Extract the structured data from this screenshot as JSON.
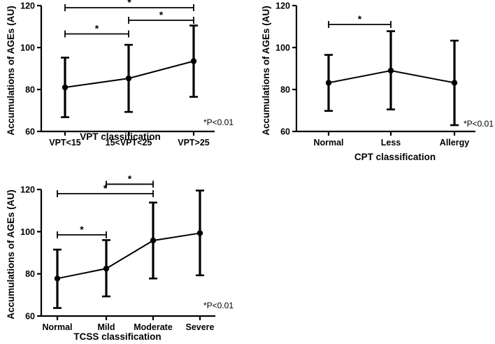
{
  "colors": {
    "ink": "#000000",
    "background": "#ffffff"
  },
  "chart_data": [
    {
      "type": "line",
      "id": "vpt",
      "xlabel": "VPT classification",
      "ylabel": "Accumulations of AGEs (AU)",
      "ylim": [
        60,
        120
      ],
      "yticks": [
        "60",
        "80",
        "100",
        "120"
      ],
      "categories": [
        "VPT<15",
        "15<VPT<25",
        "VPT>25"
      ],
      "values": [
        81,
        85.3,
        93.5
      ],
      "error_low": [
        66.8,
        69.3,
        76.5
      ],
      "error_high": [
        95.2,
        101.3,
        110.5
      ],
      "significance": [
        {
          "from": 0,
          "to": 2,
          "y": 119,
          "label": "*"
        },
        {
          "from": 0,
          "to": 1,
          "y": 106.5,
          "label": "*"
        },
        {
          "from": 1,
          "to": 2,
          "y": 113,
          "label": "*"
        }
      ],
      "note": "*P<0.01"
    },
    {
      "type": "line",
      "id": "cpt",
      "xlabel": "CPT classification",
      "ylabel": "Accumulations of AGEs (AU)",
      "ylim": [
        60,
        120
      ],
      "yticks": [
        "60",
        "80",
        "100",
        "120"
      ],
      "categories": [
        "Normal",
        "Less",
        "Allergy"
      ],
      "values": [
        83.2,
        89,
        83.2
      ],
      "error_low": [
        69.8,
        70.5,
        63
      ],
      "error_high": [
        96.5,
        107.8,
        103.3
      ],
      "significance": [
        {
          "from": 0,
          "to": 1,
          "y": 111,
          "label": "*"
        }
      ],
      "note": "*P<0.01"
    },
    {
      "type": "line",
      "id": "tcss",
      "xlabel": "TCSS classification",
      "ylabel": "Accumulations of AGEs (AU)",
      "ylim": [
        60,
        120
      ],
      "yticks": [
        "60",
        "80",
        "100",
        "120"
      ],
      "categories": [
        "Normal",
        "Mild",
        "Moderate",
        "Severe"
      ],
      "values": [
        77.8,
        82.5,
        95.8,
        99.3
      ],
      "error_low": [
        63.8,
        69.3,
        77.8,
        79.3
      ],
      "error_high": [
        91.5,
        96,
        113.8,
        119.5
      ],
      "significance": [
        {
          "from": 0,
          "to": 2,
          "y": 118,
          "label": "*"
        },
        {
          "from": 1,
          "to": 2,
          "y": 122.5,
          "label": "*"
        },
        {
          "from": 0,
          "to": 1,
          "y": 98.5,
          "label": "*"
        }
      ],
      "note": "*P<0.01"
    }
  ]
}
